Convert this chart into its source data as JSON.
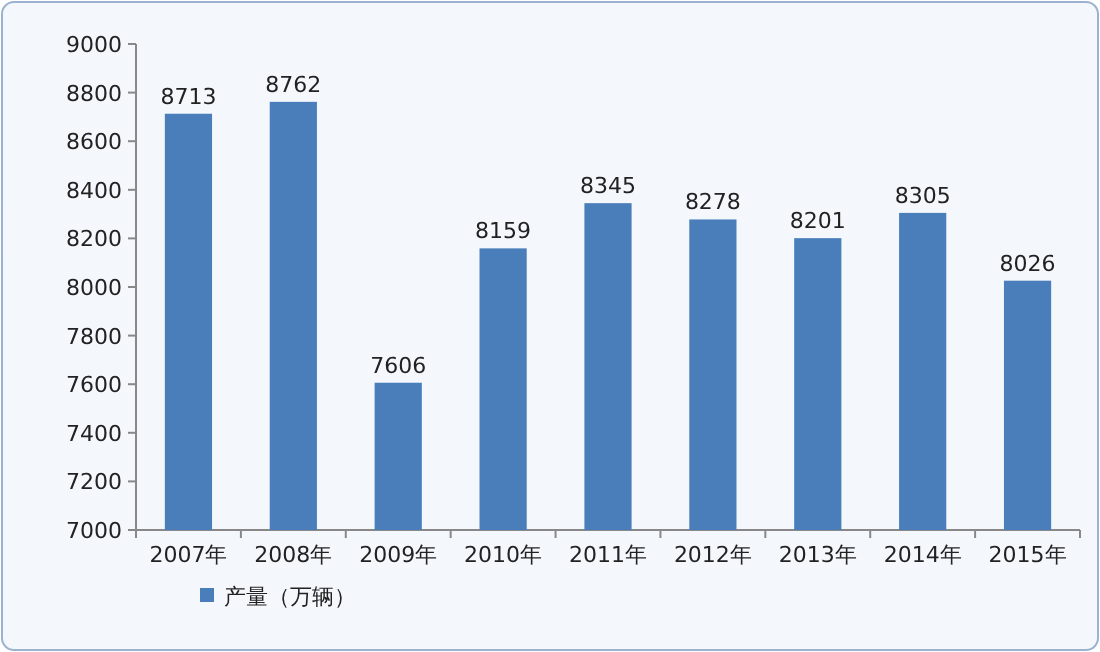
{
  "chart_data": {
    "type": "bar",
    "categories": [
      "2007年",
      "2008年",
      "2009年",
      "2010年",
      "2011年",
      "2012年",
      "2013年",
      "2014年",
      "2015年"
    ],
    "series": [
      {
        "name": "产量（万辆）",
        "color": "#4a7ebb",
        "values": [
          8713,
          8762,
          7606,
          8159,
          8345,
          8278,
          8201,
          8305,
          8026
        ]
      }
    ],
    "ylim": [
      7000,
      9000
    ],
    "yticks": [
      7000,
      7200,
      7400,
      7600,
      7800,
      8000,
      8200,
      8400,
      8600,
      8800,
      9000
    ],
    "data_labels": true,
    "legend": "bottom left"
  }
}
